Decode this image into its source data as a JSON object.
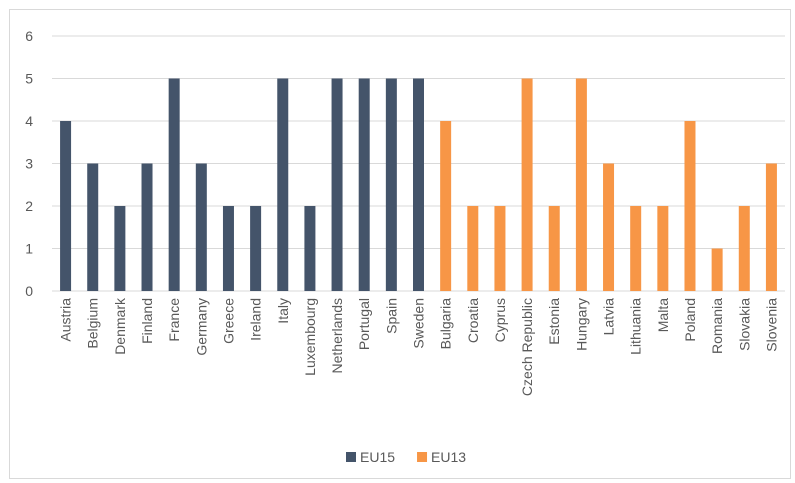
{
  "chart_data": {
    "type": "bar",
    "categories": [
      "Austria",
      "Belgium",
      "Denmark",
      "Finland",
      "France",
      "Germany",
      "Greece",
      "Ireland",
      "Italy",
      "Luxembourg",
      "Netherlands",
      "Portugal",
      "Spain",
      "Sweden",
      "Bulgaria",
      "Croatia",
      "Cyprus",
      "Czech Republic",
      "Estonia",
      "Hungary",
      "Latvia",
      "Lithuania",
      "Malta",
      "Poland",
      "Romania",
      "Slovakia",
      "Slovenia"
    ],
    "series": [
      {
        "name": "EU15",
        "color": "#44546a",
        "values": [
          4,
          3,
          2,
          3,
          5,
          3,
          2,
          2,
          5,
          2,
          5,
          5,
          5,
          5,
          null,
          null,
          null,
          null,
          null,
          null,
          null,
          null,
          null,
          null,
          null,
          null,
          null
        ]
      },
      {
        "name": "EU13",
        "color": "#f79646",
        "values": [
          null,
          null,
          null,
          null,
          null,
          null,
          null,
          null,
          null,
          null,
          null,
          null,
          null,
          null,
          4,
          2,
          2,
          5,
          2,
          5,
          3,
          2,
          2,
          4,
          1,
          2,
          3
        ]
      }
    ],
    "ylim": [
      0,
      6
    ],
    "yticks": [
      0,
      1,
      2,
      3,
      4,
      5,
      6
    ],
    "grid": true,
    "legend": "bottom"
  }
}
